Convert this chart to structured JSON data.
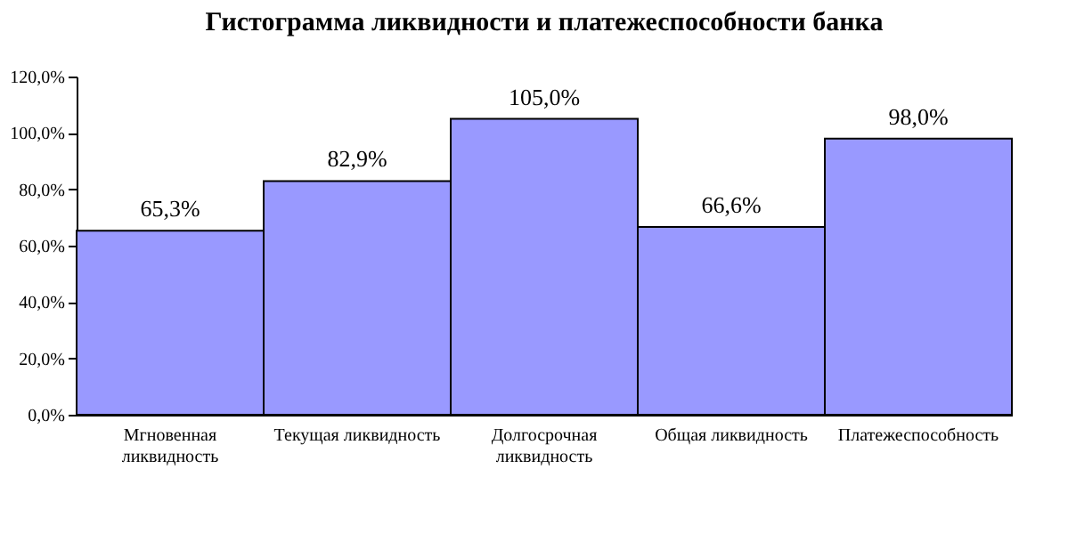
{
  "chart_data": {
    "type": "bar",
    "title": "Гистограмма ликвидности и платежеспособности банка",
    "categories": [
      "Мгновенная\nликвидность",
      "Текущая ликвидность",
      "Долгосрочная\nликвидность",
      "Общая ликвидность",
      "Платежеспособность"
    ],
    "values": [
      65.3,
      82.9,
      105.0,
      66.6,
      98.0
    ],
    "value_labels": [
      "65,3%",
      "82,9%",
      "105,0%",
      "66,6%",
      "98,0%"
    ],
    "color": "#9999ff",
    "ylim": [
      0,
      120
    ],
    "yticks": [
      {
        "value": 0,
        "label": "0,0%"
      },
      {
        "value": 20,
        "label": "20,0%"
      },
      {
        "value": 40,
        "label": "40,0%"
      },
      {
        "value": 60,
        "label": "60,0%"
      },
      {
        "value": 80,
        "label": "80,0%"
      },
      {
        "value": 100,
        "label": "100,0%"
      },
      {
        "value": 120,
        "label": "120,0%"
      }
    ],
    "grid": false
  }
}
